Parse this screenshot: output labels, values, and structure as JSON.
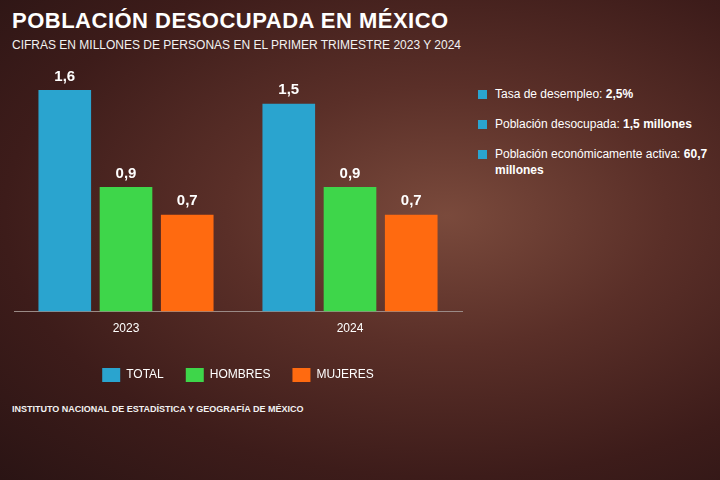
{
  "chart_data": {
    "type": "bar",
    "title": "POBLACIÓN DESOCUPADA EN MÉXICO",
    "subtitle": "CIFRAS EN MILLONES DE PERSONAS EN EL PRIMER TRIMESTRE 2023 Y 2024",
    "categories": [
      "2023",
      "2024"
    ],
    "series": [
      {
        "name": "TOTAL",
        "color": "#2aa4cf",
        "values": [
          1.6,
          1.5
        ],
        "value_labels": [
          "1,6",
          "1,5"
        ]
      },
      {
        "name": "HOMBRES",
        "color": "#3ed64a",
        "values": [
          0.9,
          0.9
        ],
        "value_labels": [
          "0,9",
          "0,9"
        ]
      },
      {
        "name": "MUJERES",
        "color": "#ff6a10",
        "values": [
          0.7,
          0.7
        ],
        "value_labels": [
          "0,7",
          "0,7"
        ]
      }
    ],
    "ylim": [
      0,
      1.6
    ],
    "grid": false,
    "legend": "bottom",
    "data_labels": true,
    "tick_labels": "x",
    "annotations": [
      "Tasa de desempleo: 2,5%",
      "Población desocupada: 1,5 millones",
      "Población económicamente activa: 60,7 millones"
    ],
    "source": "INSTITUTO NACIONAL DE ESTADÍSTICA Y GEOGRAFÍA DE MÉXICO"
  }
}
